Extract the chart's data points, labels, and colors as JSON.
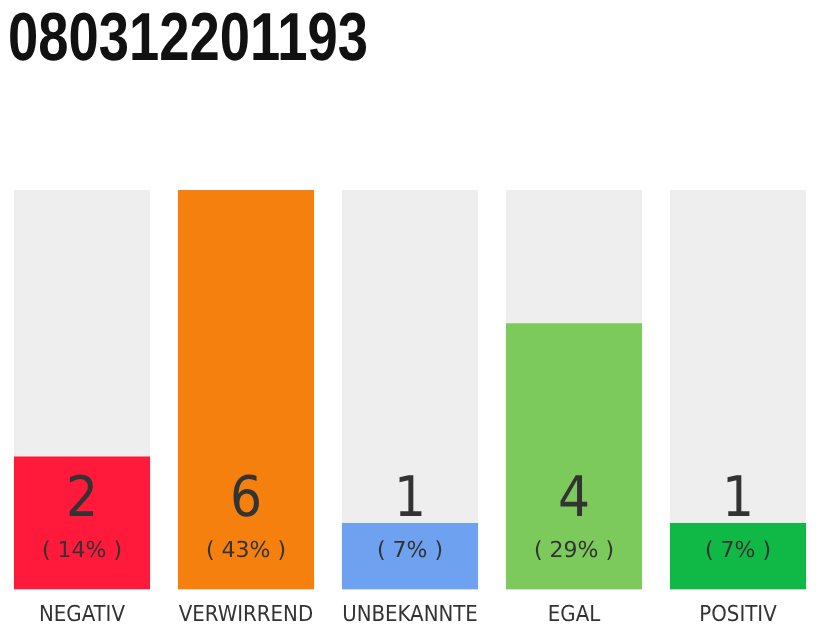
{
  "chart_data": {
    "type": "bar",
    "title": "080312201193",
    "categories": [
      "NEGATIV",
      "VERWIRREND",
      "UNBEKANNTE",
      "EGAL",
      "POSITIV"
    ],
    "values": [
      2,
      6,
      1,
      4,
      1
    ],
    "colors": [
      "#ff1a3c",
      "#f5800e",
      "#6ea2f0",
      "#7dca5c",
      "#10b846"
    ],
    "value_labels": [
      "2\n( 14% )",
      "6\n( 43% )",
      "1\n( 7% )",
      "4\n( 29% )",
      "1\n( 7% )"
    ],
    "ylim": [
      0,
      6
    ],
    "grid": false,
    "legend": false,
    "tick_labels": "x"
  }
}
